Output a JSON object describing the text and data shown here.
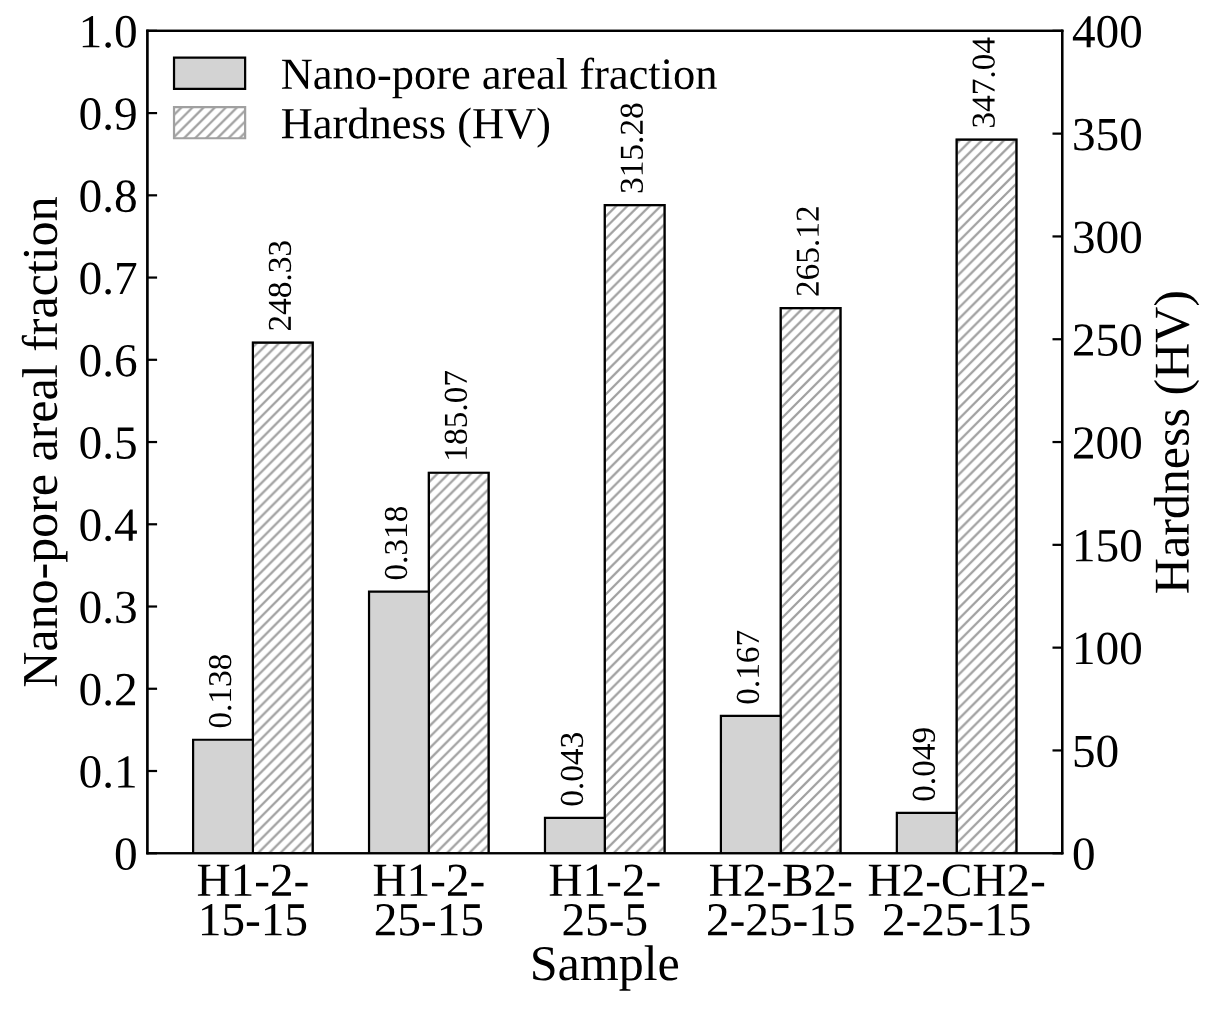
{
  "chart_data": {
    "type": "bar",
    "xlabel": "Sample",
    "ylabel": "Nano-pore areal fraction",
    "y2label": "Hardness (HV)",
    "categories": [
      "H1-2-\n15-15",
      "H1-2-\n25-15",
      "H1-2-\n25-5",
      "H2-B2-\n2-25-15",
      "H2-CH2-\n2-25-15"
    ],
    "series": [
      {
        "name": "Nano-pore areal fraction",
        "color": "#d3d3d3",
        "values": [
          0.138,
          0.318,
          0.043,
          0.167,
          0.049
        ]
      },
      {
        "name": "Hardness (HV)",
        "color": "#a0a0a0",
        "axis": "y2",
        "values": [
          248.33,
          185.07,
          315.28,
          265.12,
          347.04
        ]
      }
    ],
    "ylim": [
      0,
      1.0
    ],
    "yticks": [
      0,
      0.1,
      0.2,
      0.3,
      0.4,
      0.5,
      0.6,
      0.7,
      0.8,
      0.9,
      {
        "value": 1.0,
        "label": "1.0"
      }
    ],
    "y2lim": [
      0,
      400
    ],
    "y2ticks": [
      0,
      50,
      100,
      150,
      200,
      250,
      300,
      350,
      400
    ],
    "data_labels": true,
    "legend": "top left",
    "grid": false
  }
}
